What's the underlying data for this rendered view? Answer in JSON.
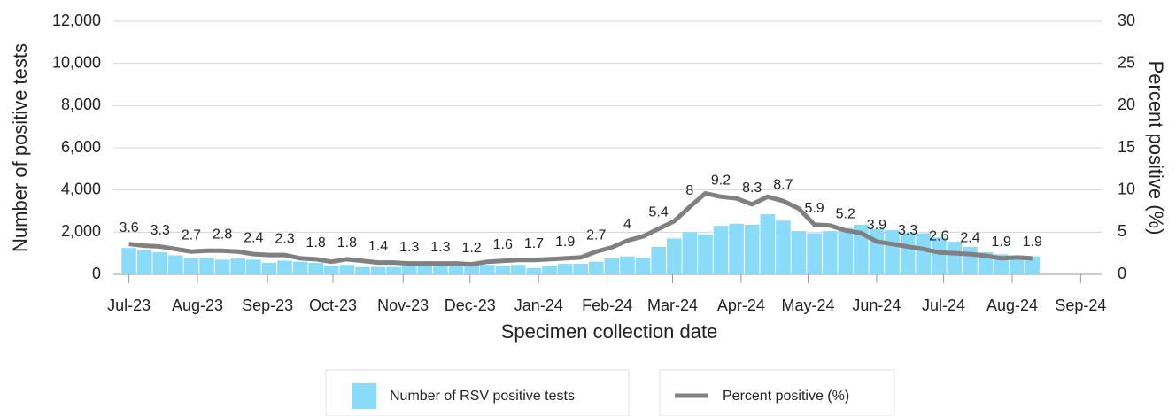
{
  "chart_data": {
    "type": "bar-line",
    "x_label": "Specimen collection date",
    "y_label": "Number of positive tests",
    "y2_label": "Percent positive (%)",
    "x": [
      0,
      1,
      2,
      3,
      4,
      5,
      6,
      7,
      8,
      9,
      10,
      11,
      12,
      13,
      14,
      15,
      16,
      17,
      18,
      19,
      20,
      21,
      22,
      23,
      24,
      25,
      26,
      27,
      28,
      29,
      30,
      31,
      32,
      33,
      34,
      35,
      36,
      37,
      38,
      39,
      40,
      41,
      42,
      43,
      44,
      45,
      46,
      47,
      48,
      49,
      50,
      51,
      52,
      53,
      54,
      55,
      56,
      57,
      58
    ],
    "xlim": [
      -1,
      62.5
    ],
    "xticks": [
      {
        "value": 0,
        "label": "Jul-23"
      },
      {
        "value": 4.4,
        "label": "Aug-23"
      },
      {
        "value": 8.9,
        "label": "Sep-23"
      },
      {
        "value": 13.1,
        "label": "Oct-23"
      },
      {
        "value": 17.6,
        "label": "Nov-23"
      },
      {
        "value": 21.9,
        "label": "Dec-23"
      },
      {
        "value": 26.3,
        "label": "Jan-24"
      },
      {
        "value": 30.7,
        "label": "Feb-24"
      },
      {
        "value": 34.9,
        "label": "Mar-24"
      },
      {
        "value": 39.3,
        "label": "Apr-24"
      },
      {
        "value": 43.6,
        "label": "May-24"
      },
      {
        "value": 48.0,
        "label": "Jun-24"
      },
      {
        "value": 52.3,
        "label": "Jul-24"
      },
      {
        "value": 56.7,
        "label": "Aug-24"
      },
      {
        "value": 61.1,
        "label": "Sep-24"
      }
    ],
    "ylim": [
      0,
      12000
    ],
    "yticks": [
      0,
      {
        "value": 2000,
        "label": "2,000"
      },
      {
        "value": 4000,
        "label": "4,000"
      },
      {
        "value": 6000,
        "label": "6,000"
      },
      {
        "value": 8000,
        "label": "8,000"
      },
      {
        "value": 10000,
        "label": "10,000"
      },
      {
        "value": 12000,
        "label": "12,000"
      }
    ],
    "y2lim": [
      0,
      30
    ],
    "y2ticks": [
      0,
      5,
      10,
      15,
      20,
      25,
      30
    ],
    "grid": true,
    "series": [
      {
        "name": "Number of RSV positive tests",
        "kind": "bar",
        "color": "#8adaf9",
        "values": [
          1250,
          1150,
          1050,
          900,
          750,
          800,
          700,
          750,
          700,
          550,
          650,
          600,
          550,
          400,
          450,
          350,
          350,
          350,
          400,
          400,
          400,
          400,
          400,
          450,
          400,
          450,
          300,
          400,
          500,
          500,
          600,
          750,
          850,
          800,
          1300,
          1700,
          2000,
          1900,
          2300,
          2400,
          2350,
          2850,
          2550,
          2050,
          1950,
          2050,
          2200,
          2350,
          2150,
          2100,
          1950,
          1950,
          1750,
          1550,
          1300,
          1050,
          950,
          900,
          850
        ]
      },
      {
        "name": "Percent positive (%)",
        "kind": "line",
        "axis": "y2",
        "color": "#808080",
        "values": [
          3.6,
          3.4,
          3.3,
          3.0,
          2.7,
          2.8,
          2.8,
          2.7,
          2.4,
          2.3,
          2.3,
          1.9,
          1.8,
          1.5,
          1.8,
          1.6,
          1.4,
          1.4,
          1.3,
          1.3,
          1.3,
          1.3,
          1.2,
          1.5,
          1.6,
          1.7,
          1.7,
          1.8,
          1.9,
          2.0,
          2.7,
          3.2,
          4,
          4.5,
          5.4,
          6.3,
          8,
          9.6,
          9.2,
          9.0,
          8.3,
          9.2,
          8.7,
          7.8,
          5.9,
          5.8,
          5.2,
          4.9,
          3.9,
          3.6,
          3.3,
          3.0,
          2.6,
          2.5,
          2.4,
          2.2,
          1.9,
          2.0,
          1.9
        ],
        "value_labels": [
          "3.6",
          null,
          "3.3",
          null,
          "2.7",
          null,
          "2.8",
          null,
          "2.4",
          null,
          "2.3",
          null,
          "1.8",
          null,
          "1.8",
          null,
          "1.4",
          null,
          "1.3",
          null,
          "1.3",
          null,
          "1.2",
          null,
          "1.6",
          null,
          "1.7",
          null,
          "1.9",
          null,
          "2.7",
          null,
          "4",
          null,
          "5.4",
          null,
          "8",
          null,
          "9.2",
          null,
          "8.3",
          null,
          "8.7",
          null,
          "5.9",
          null,
          "5.2",
          null,
          "3.9",
          null,
          "3.3",
          null,
          "2.6",
          null,
          "2.4",
          null,
          "1.9",
          null,
          "1.9"
        ]
      }
    ]
  }
}
